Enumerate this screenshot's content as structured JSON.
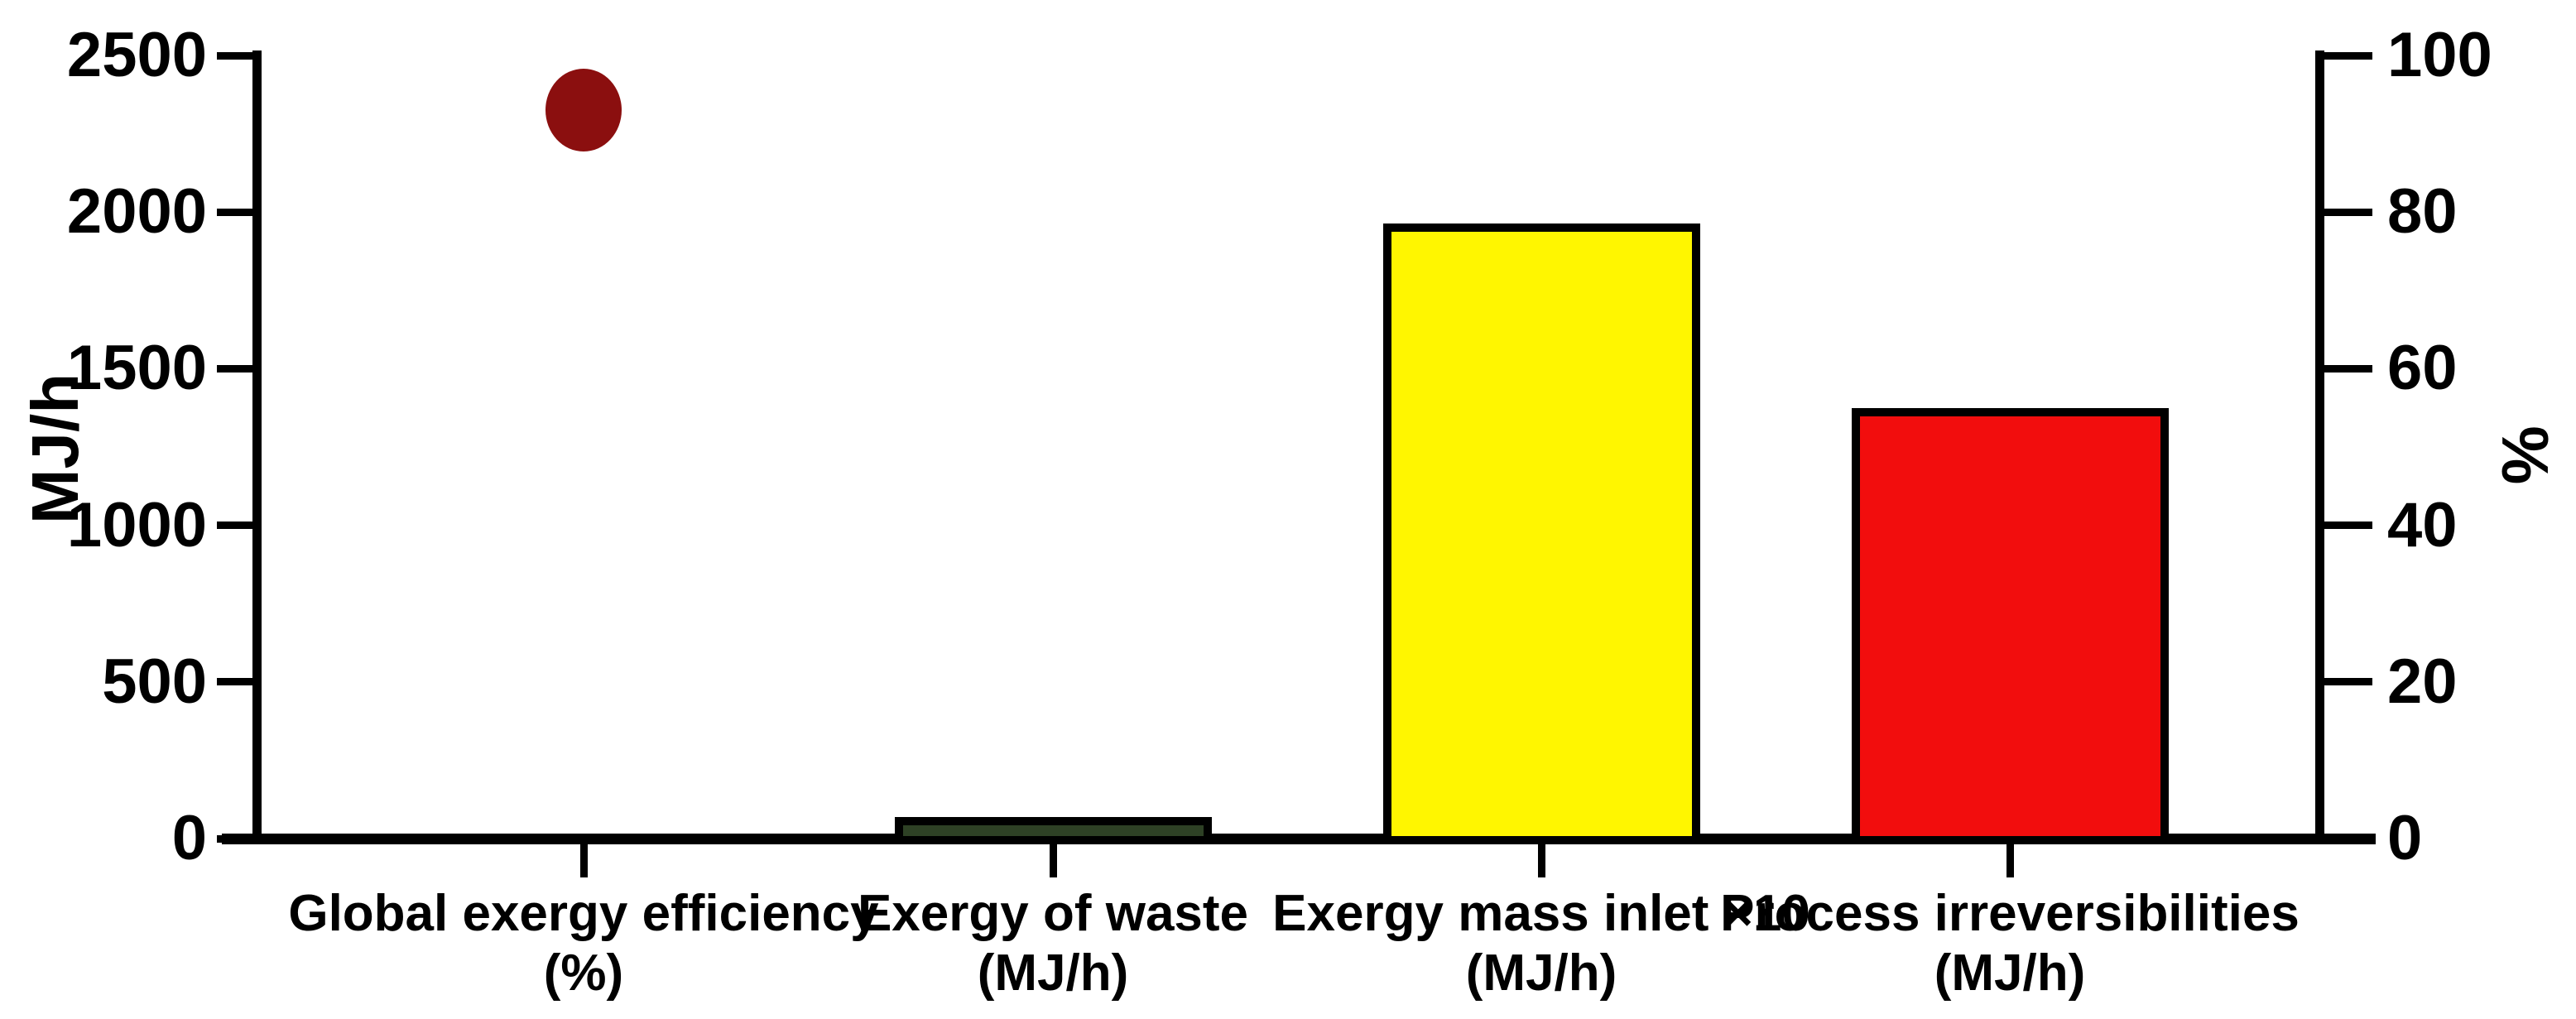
{
  "figure": {
    "kind": "dual-axis bar and scatter chart",
    "background": "#FFFFFF"
  },
  "chart_data": {
    "type": "bar",
    "title": "",
    "grid": false,
    "legend": "none",
    "background": "#FFFFFF",
    "axis_color": "#000000",
    "bar_border_color": "#000000",
    "left_axis": {
      "label": "MJ/h",
      "min": 0,
      "max": 2500,
      "ticks": [
        0,
        500,
        1000,
        1500,
        2000,
        2500
      ]
    },
    "right_axis": {
      "label": "%",
      "min": 0,
      "max": 100,
      "ticks": [
        0,
        20,
        40,
        60,
        80,
        100
      ]
    },
    "categories": [
      {
        "line1": "Global exergy efficiency",
        "line2": "(%)"
      },
      {
        "line1": "Exergy of waste",
        "line2": "(MJ/h)"
      },
      {
        "line1": "Exergy mass inlet ×10",
        "line2": "(MJ/h)"
      },
      {
        "line1": "Process irreversibilities",
        "line2": "(MJ/h)"
      }
    ],
    "series": [
      {
        "name": "Global exergy efficiency",
        "type": "scatter",
        "marker": "circle",
        "axis": "right",
        "category_index": 0,
        "value": 93,
        "unit": "%",
        "color": "#8B0F0F"
      },
      {
        "name": "Exergy of waste",
        "type": "bar",
        "axis": "left",
        "category_index": 1,
        "value": 55,
        "unit": "MJ/h",
        "color": "#2E4125"
      },
      {
        "name": "Exergy mass inlet ×10",
        "type": "bar",
        "axis": "left",
        "category_index": 2,
        "value": 1950,
        "unit": "MJ/h",
        "color": "#FFF600"
      },
      {
        "name": "Process irreversibilities",
        "type": "bar",
        "axis": "left",
        "category_index": 3,
        "value": 1360,
        "unit": "MJ/h",
        "color": "#F20D0D"
      }
    ]
  }
}
